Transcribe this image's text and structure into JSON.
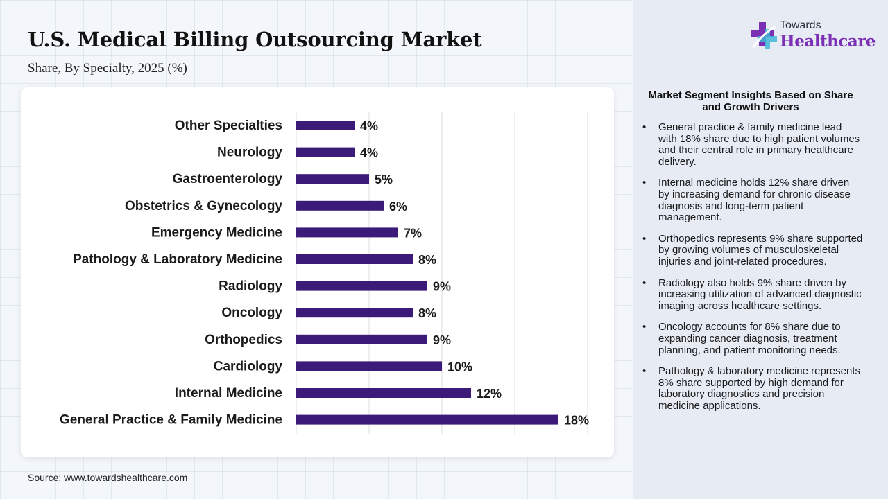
{
  "header": {
    "title": "U.S. Medical Billing Outsourcing Market",
    "subtitle": "Share, By Specialty, 2025 (%)"
  },
  "logo": {
    "line1": "Towards",
    "line2": "Healthcare",
    "icon": "medical-cross-icon"
  },
  "chart_data": {
    "type": "bar",
    "orientation": "horizontal",
    "categories": [
      "Other Specialties",
      "Neurology",
      "Gastroenterology",
      "Obstetrics & Gynecology",
      "Emergency Medicine",
      "Pathology & Laboratory Medicine",
      "Radiology",
      "Oncology",
      "Orthopedics",
      "Cardiology",
      "Internal Medicine",
      "General Practice & Family Medicine"
    ],
    "values": [
      4,
      4,
      5,
      6,
      7,
      8,
      9,
      8,
      9,
      10,
      12,
      18
    ],
    "value_labels": [
      "4%",
      "4%",
      "5%",
      "6%",
      "7%",
      "8%",
      "9%",
      "8%",
      "9%",
      "10%",
      "12%",
      "18%"
    ],
    "unit": "%",
    "xlim": [
      0,
      20
    ],
    "grid": true,
    "bar_color": "#3b1a7a"
  },
  "insights": {
    "title": "Market Segment Insights Based on Share and Growth Drivers",
    "bullet": "•",
    "items": [
      "General practice & family medicine lead with 18% share due to high patient volumes and their central role in primary healthcare delivery.",
      "Internal medicine holds 12% share driven by increasing demand for chronic disease diagnosis and long-term patient management.",
      "Orthopedics represents 9% share supported by growing volumes of musculoskeletal injuries and joint-related procedures.",
      "Radiology also holds 9% share driven by increasing utilization of advanced diagnostic imaging across healthcare settings.",
      "Oncology accounts for 8% share due to expanding cancer diagnosis, treatment planning, and patient monitoring needs.",
      "Pathology & laboratory medicine represents 8% share supported by high demand for laboratory diagnostics and precision medicine applications."
    ]
  },
  "footer": {
    "source": "Source: www.towardshealthcare.com"
  }
}
